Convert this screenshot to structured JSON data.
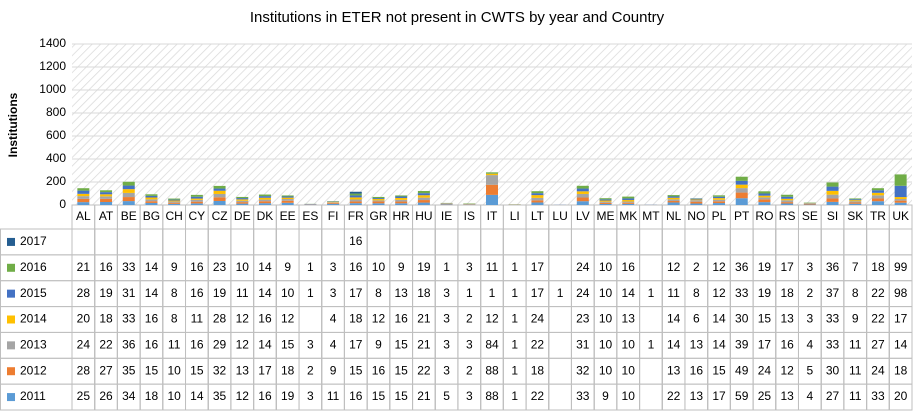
{
  "chart_data": {
    "type": "bar",
    "stacked": true,
    "title": "Institutions in ETER not present in CWTS by year and Country",
    "y_label": "Institutions",
    "categories": [
      "AL",
      "AT",
      "BE",
      "BG",
      "CH",
      "CY",
      "CZ",
      "DE",
      "DK",
      "EE",
      "ES",
      "FI",
      "FR",
      "GR",
      "HR",
      "HU",
      "IE",
      "IS",
      "IT",
      "LI",
      "LT",
      "LU",
      "LV",
      "ME",
      "MK",
      "MT",
      "NL",
      "NO",
      "PL",
      "PT",
      "RO",
      "RS",
      "SE",
      "SI",
      "SK",
      "TR",
      "UK"
    ],
    "ylim": [
      0,
      1400
    ],
    "yticks": [
      0,
      200,
      400,
      600,
      800,
      1000,
      1200,
      1400
    ],
    "grid": true,
    "series": [
      {
        "name": "2011",
        "color": "#5b9bd5",
        "values": [
          25,
          26,
          34,
          18,
          10,
          14,
          35,
          12,
          16,
          19,
          3,
          11,
          16,
          15,
          15,
          21,
          5,
          3,
          88,
          1,
          22,
          null,
          33,
          9,
          10,
          null,
          22,
          13,
          17,
          59,
          25,
          13,
          4,
          27,
          11,
          33,
          20
        ]
      },
      {
        "name": "2012",
        "color": "#ed7d31",
        "values": [
          28,
          27,
          35,
          15,
          10,
          15,
          32,
          13,
          17,
          18,
          2,
          9,
          15,
          16,
          15,
          22,
          3,
          2,
          88,
          1,
          18,
          null,
          32,
          10,
          10,
          null,
          13,
          16,
          15,
          49,
          24,
          12,
          5,
          30,
          11,
          24,
          18
        ]
      },
      {
        "name": "2013",
        "color": "#a5a5a5",
        "values": [
          24,
          22,
          36,
          16,
          11,
          16,
          29,
          12,
          14,
          15,
          3,
          4,
          17,
          9,
          15,
          21,
          3,
          3,
          84,
          1,
          22,
          null,
          31,
          10,
          10,
          1,
          14,
          13,
          14,
          39,
          17,
          16,
          4,
          33,
          11,
          27,
          14
        ]
      },
      {
        "name": "2014",
        "color": "#ffc000",
        "values": [
          20,
          18,
          33,
          16,
          8,
          11,
          28,
          12,
          16,
          12,
          null,
          4,
          18,
          12,
          16,
          21,
          3,
          2,
          12,
          1,
          24,
          null,
          23,
          10,
          13,
          null,
          14,
          6,
          14,
          30,
          15,
          13,
          3,
          33,
          9,
          22,
          17
        ]
      },
      {
        "name": "2015",
        "color": "#4472c4",
        "values": [
          28,
          19,
          31,
          14,
          8,
          16,
          19,
          11,
          14,
          10,
          1,
          3,
          17,
          8,
          13,
          18,
          3,
          1,
          1,
          1,
          17,
          1,
          24,
          10,
          14,
          1,
          11,
          8,
          12,
          33,
          19,
          18,
          2,
          37,
          8,
          22,
          98
        ]
      },
      {
        "name": "2016",
        "color": "#70ad47",
        "values": [
          21,
          16,
          33,
          14,
          9,
          16,
          23,
          10,
          14,
          9,
          1,
          3,
          16,
          10,
          9,
          19,
          1,
          3,
          11,
          1,
          17,
          null,
          24,
          10,
          16,
          null,
          12,
          2,
          12,
          36,
          19,
          17,
          3,
          36,
          7,
          18,
          99
        ]
      },
      {
        "name": "2017",
        "color": "#255e91",
        "values": [
          null,
          null,
          null,
          null,
          null,
          null,
          null,
          null,
          null,
          null,
          null,
          null,
          16,
          null,
          null,
          null,
          null,
          null,
          null,
          null,
          null,
          null,
          null,
          null,
          null,
          null,
          null,
          null,
          null,
          null,
          null,
          null,
          null,
          null,
          null,
          null,
          null
        ]
      }
    ]
  }
}
